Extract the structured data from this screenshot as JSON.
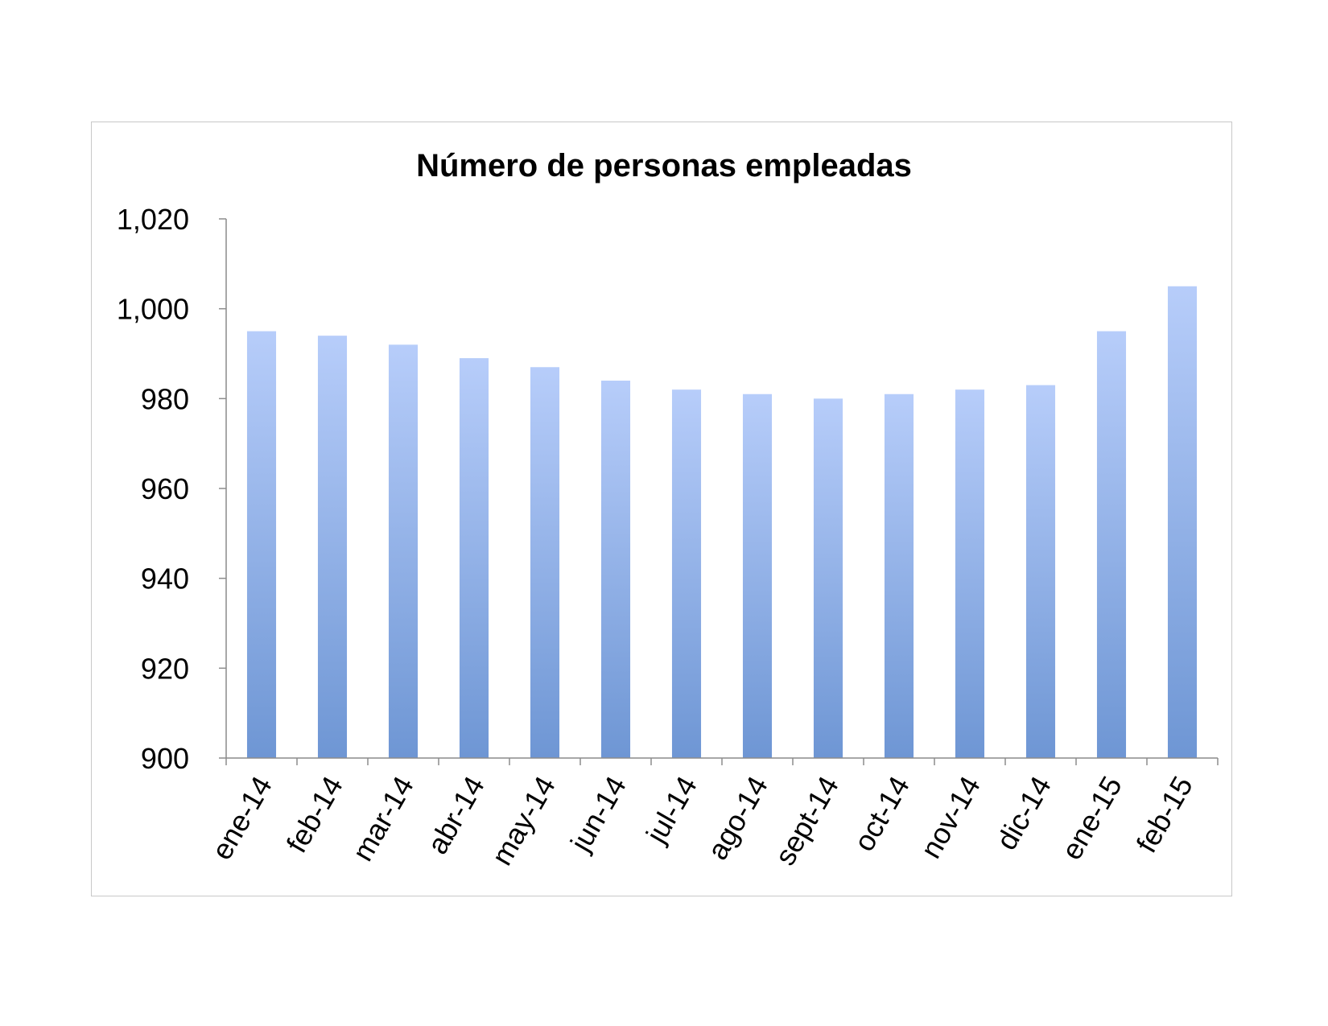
{
  "chart_data": {
    "type": "bar",
    "title": "Número de personas empleadas",
    "xlabel": "",
    "ylabel": "",
    "categories": [
      "ene-14",
      "feb-14",
      "mar-14",
      "abr-14",
      "may-14",
      "jun-14",
      "jul-14",
      "ago-14",
      "sept-14",
      "oct-14",
      "nov-14",
      "dic-14",
      "ene-15",
      "feb-15"
    ],
    "values": [
      995,
      994,
      992,
      989,
      987,
      984,
      982,
      981,
      980,
      981,
      982,
      983,
      995,
      1005
    ],
    "ylim": [
      900,
      1020
    ],
    "yticks": [
      "900",
      "920",
      "940",
      "960",
      "980",
      "1,000",
      "1,020"
    ],
    "yticks_values": [
      900,
      920,
      940,
      960,
      980,
      1000,
      1020
    ],
    "grid": false,
    "legend": "none",
    "colors": {
      "bar_top": "#b7cdfa",
      "bar_bottom": "#6e96d4",
      "axis": "#8c8c8c",
      "frame": "#c8c8c8"
    }
  }
}
